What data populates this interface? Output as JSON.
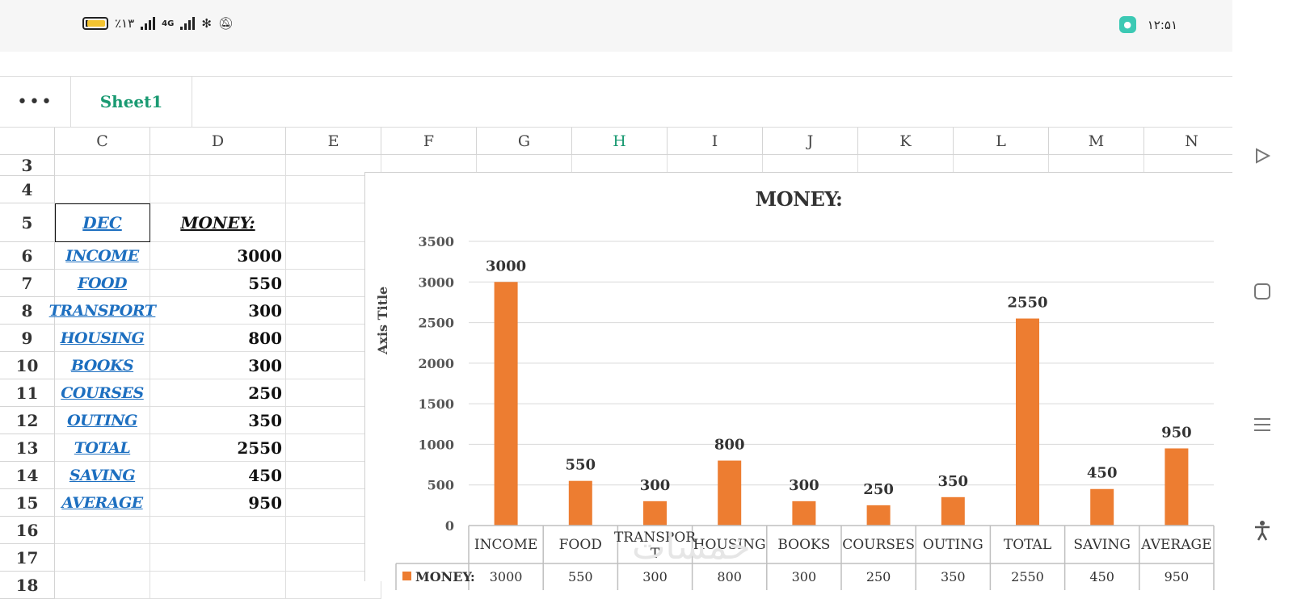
{
  "status_bar": {
    "battery_pct": "٪۱۳",
    "network": "4G",
    "time": "۱۲:۵۱"
  },
  "toolbar": {
    "more_label": "•••",
    "sheet_tab": "Sheet1"
  },
  "columns": [
    "C",
    "D",
    "E",
    "F",
    "G",
    "H",
    "I",
    "J",
    "K",
    "L",
    "M",
    "N"
  ],
  "active_column": "H",
  "rows": [
    "3",
    "4",
    "5",
    "6",
    "7",
    "8",
    "9",
    "10",
    "11",
    "12",
    "13",
    "14",
    "15",
    "16",
    "17",
    "18"
  ],
  "table": {
    "header_label": "DEC",
    "header_value": "MONEY:",
    "entries": [
      {
        "label": "INCOME",
        "value": "3000"
      },
      {
        "label": "FOOD",
        "value": "550"
      },
      {
        "label": "TRANSPORT",
        "value": "300"
      },
      {
        "label": "HOUSING",
        "value": "800"
      },
      {
        "label": "BOOKS",
        "value": "300"
      },
      {
        "label": "COURSES",
        "value": "250"
      },
      {
        "label": "OUTING",
        "value": "350"
      },
      {
        "label": "TOTAL",
        "value": "2550"
      },
      {
        "label": "SAVING",
        "value": "450"
      },
      {
        "label": "AVERAGE",
        "value": "950"
      }
    ]
  },
  "chart_data": {
    "type": "bar",
    "title": "MONEY:",
    "ylabel": "Axis Title",
    "xlabel": "",
    "categories": [
      "INCOME",
      "FOOD",
      "TRANSPORT",
      "HOUSING",
      "BOOKS",
      "COURSES",
      "OUTING",
      "TOTAL",
      "SAVING",
      "AVERAGE"
    ],
    "category_display": [
      "INCOME",
      "FOOD",
      "TRANSPOR\nT",
      "HOUSING",
      "BOOKS",
      "COURSES",
      "OUTING",
      "TOTAL",
      "SAVING",
      "AVERAGE"
    ],
    "series": [
      {
        "name": "MONEY:",
        "values": [
          3000,
          550,
          300,
          800,
          300,
          250,
          350,
          2550,
          450,
          950
        ],
        "color": "#ed7d31"
      }
    ],
    "ylim": [
      0,
      3500
    ],
    "yticks": [
      0,
      500,
      1000,
      1500,
      2000,
      2500,
      3000,
      3500
    ],
    "grid": true,
    "data_labels": true,
    "data_table": true
  },
  "watermark": "خمسات"
}
